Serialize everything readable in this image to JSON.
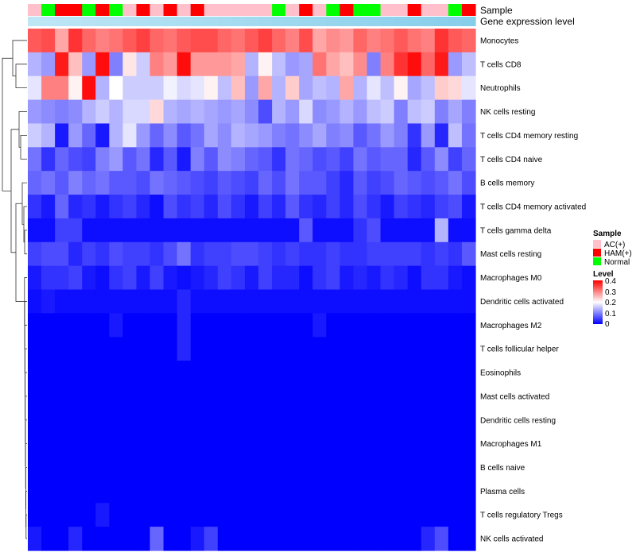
{
  "chart_data": {
    "type": "heatmap",
    "annotation_tracks": [
      "Sample",
      "Gene expression level"
    ],
    "rows": [
      "Monocytes",
      "T cells CD8",
      "Neutrophils",
      "NK cells resting",
      "T cells CD4 memory resting",
      "T cells CD4 naive",
      "B cells memory",
      "T cells CD4 memory activated",
      "T cells gamma delta",
      "Mast cells resting",
      "Macrophages M0",
      "Dendritic cells activated",
      "Macrophages M2",
      "T cells follicular helper",
      "Eosinophils",
      "Mast cells activated",
      "Dendritic cells resting",
      "Macrophages M1",
      "B cells naive",
      "Plasma cells",
      "T cells regulatory  Tregs",
      "NK cells activated"
    ],
    "sample_groups": [
      "A",
      "N",
      "H",
      "H",
      "N",
      "H",
      "N",
      "A",
      "H",
      "A",
      "H",
      "A",
      "H",
      "A",
      "A",
      "A",
      "A",
      "A",
      "N",
      "A",
      "H",
      "A",
      "N",
      "H",
      "N",
      "N",
      "A",
      "A",
      "H",
      "A",
      "A",
      "N",
      "H"
    ],
    "legend_sample": {
      "title": "Sample",
      "items": [
        {
          "label": "AC(+)",
          "color": "#FFC0CB"
        },
        {
          "label": "HAM(+)",
          "color": "#FF0000"
        },
        {
          "label": "Normal",
          "color": "#00FF00"
        }
      ]
    },
    "legend_level": {
      "title": "Level",
      "ticks": [
        "0.4",
        "0.3",
        "0.2",
        "0.1",
        "0"
      ],
      "range": [
        0,
        0.4
      ],
      "color_low": "#0000FF",
      "color_mid": "#FFFFFF",
      "color_high": "#FF0000"
    },
    "expression_track_color": "#87CEEB",
    "expression_track_light": "#BEE6F5",
    "values": [
      [
        0.33,
        0.34,
        0.27,
        0.36,
        0.32,
        0.3,
        0.31,
        0.33,
        0.35,
        0.32,
        0.31,
        0.33,
        0.34,
        0.34,
        0.32,
        0.31,
        0.33,
        0.35,
        0.32,
        0.3,
        0.34,
        0.27,
        0.29,
        0.28,
        0.32,
        0.3,
        0.31,
        0.33,
        0.31,
        0.3,
        0.36,
        0.33,
        0.32
      ],
      [
        0.14,
        0.12,
        0.38,
        0.25,
        0.12,
        0.39,
        0.1,
        0.22,
        0.16,
        0.3,
        0.28,
        0.39,
        0.28,
        0.28,
        0.28,
        0.27,
        0.14,
        0.21,
        0.15,
        0.12,
        0.13,
        0.31,
        0.27,
        0.25,
        0.29,
        0.1,
        0.3,
        0.36,
        0.39,
        0.32,
        0.38,
        0.12,
        0.15
      ],
      [
        0.18,
        0.3,
        0.3,
        0.21,
        0.39,
        0.14,
        0.2,
        0.16,
        0.16,
        0.16,
        0.19,
        0.17,
        0.18,
        0.21,
        0.15,
        0.25,
        0.12,
        0.27,
        0.14,
        0.24,
        0.13,
        0.15,
        0.14,
        0.27,
        0.14,
        0.18,
        0.15,
        0.21,
        0.13,
        0.15,
        0.24,
        0.23,
        0.18
      ],
      [
        0.12,
        0.11,
        0.1,
        0.11,
        0.14,
        0.16,
        0.14,
        0.17,
        0.17,
        0.23,
        0.14,
        0.13,
        0.14,
        0.13,
        0.12,
        0.13,
        0.11,
        0.06,
        0.14,
        0.12,
        0.17,
        0.11,
        0.12,
        0.14,
        0.12,
        0.15,
        0.16,
        0.1,
        0.15,
        0.16,
        0.1,
        0.13,
        0.1
      ],
      [
        0.16,
        0.14,
        0.02,
        0.12,
        0.08,
        0.02,
        0.14,
        0.18,
        0.12,
        0.08,
        0.11,
        0.07,
        0.09,
        0.13,
        0.11,
        0.14,
        0.13,
        0.12,
        0.1,
        0.09,
        0.11,
        0.13,
        0.1,
        0.11,
        0.07,
        0.09,
        0.12,
        0.1,
        0.04,
        0.12,
        0.03,
        0.15,
        0.09
      ],
      [
        0.09,
        0.04,
        0.08,
        0.06,
        0.05,
        0.1,
        0.12,
        0.07,
        0.09,
        0.03,
        0.07,
        0.02,
        0.1,
        0.07,
        0.11,
        0.1,
        0.08,
        0.07,
        0.04,
        0.09,
        0.08,
        0.06,
        0.07,
        0.05,
        0.09,
        0.07,
        0.08,
        0.08,
        0.03,
        0.07,
        0.11,
        0.05,
        0.08
      ],
      [
        0.08,
        0.09,
        0.07,
        0.1,
        0.08,
        0.09,
        0.07,
        0.07,
        0.06,
        0.09,
        0.08,
        0.07,
        0.06,
        0.05,
        0.07,
        0.06,
        0.05,
        0.08,
        0.06,
        0.09,
        0.07,
        0.07,
        0.05,
        0.03,
        0.07,
        0.05,
        0.06,
        0.08,
        0.07,
        0.06,
        0.07,
        0.09,
        0.06
      ],
      [
        0.04,
        0.02,
        0.08,
        0.03,
        0.04,
        0.02,
        0.04,
        0.05,
        0.03,
        0.01,
        0.06,
        0.04,
        0.05,
        0.03,
        0.06,
        0.04,
        0.02,
        0.05,
        0.03,
        0.07,
        0.04,
        0.03,
        0.05,
        0.03,
        0.06,
        0.04,
        0.02,
        0.05,
        0.04,
        0.03,
        0.05,
        0.06,
        0.02
      ],
      [
        0.01,
        0.01,
        0.05,
        0.05,
        0.01,
        0.01,
        0.01,
        0.01,
        0.01,
        0.01,
        0.01,
        0.01,
        0.01,
        0.01,
        0.01,
        0.01,
        0.01,
        0.01,
        0.01,
        0.01,
        0.07,
        0.01,
        0.01,
        0.01,
        0.04,
        0.06,
        0.01,
        0.01,
        0.01,
        0.01,
        0.14,
        0.01,
        0.01
      ],
      [
        0.05,
        0.06,
        0.06,
        0.03,
        0.05,
        0.04,
        0.06,
        0.05,
        0.05,
        0.04,
        0.06,
        0.09,
        0.04,
        0.05,
        0.05,
        0.06,
        0.06,
        0.05,
        0.04,
        0.05,
        0.04,
        0.04,
        0.05,
        0.04,
        0.04,
        0.05,
        0.05,
        0.05,
        0.05,
        0.04,
        0.05,
        0.04,
        0.07
      ],
      [
        0.02,
        0.04,
        0.04,
        0.05,
        0.02,
        0.01,
        0.04,
        0.05,
        0.02,
        0.05,
        0.02,
        0.01,
        0.02,
        0.03,
        0.05,
        0.04,
        0.02,
        0.05,
        0.03,
        0.03,
        0.01,
        0.04,
        0.05,
        0.02,
        0.03,
        0.02,
        0.04,
        0.03,
        0.01,
        0.04,
        0.04,
        0.02,
        0.01
      ],
      [
        0.01,
        0.02,
        0.01,
        0.01,
        0.01,
        0.01,
        0.01,
        0.01,
        0.01,
        0.01,
        0.01,
        0.03,
        0.01,
        0.01,
        0.01,
        0.01,
        0.01,
        0.01,
        0.01,
        0.01,
        0.01,
        0.01,
        0.01,
        0.01,
        0.01,
        0.01,
        0.01,
        0.01,
        0.01,
        0.01,
        0.01,
        0.01,
        0.01
      ],
      [
        0.0,
        0.0,
        0.0,
        0.0,
        0.0,
        0.0,
        0.02,
        0.0,
        0.0,
        0.0,
        0.0,
        0.03,
        0.0,
        0.0,
        0.0,
        0.0,
        0.0,
        0.0,
        0.0,
        0.0,
        0.0,
        0.02,
        0.0,
        0.0,
        0.0,
        0.0,
        0.0,
        0.0,
        0.0,
        0.0,
        0.0,
        0.0,
        0.0
      ],
      [
        0.0,
        0.0,
        0.0,
        0.0,
        0.0,
        0.0,
        0.0,
        0.0,
        0.0,
        0.0,
        0.0,
        0.03,
        0.0,
        0.0,
        0.0,
        0.0,
        0.0,
        0.0,
        0.0,
        0.0,
        0.0,
        0.0,
        0.0,
        0.0,
        0.0,
        0.0,
        0.0,
        0.0,
        0.0,
        0.0,
        0.0,
        0.0,
        0.0
      ],
      [
        0.0,
        0.0,
        0.0,
        0.0,
        0.0,
        0.0,
        0.0,
        0.0,
        0.0,
        0.0,
        0.0,
        0.0,
        0.0,
        0.0,
        0.0,
        0.0,
        0.0,
        0.0,
        0.0,
        0.0,
        0.0,
        0.0,
        0.0,
        0.0,
        0.0,
        0.0,
        0.0,
        0.0,
        0.0,
        0.0,
        0.0,
        0.0,
        0.0
      ],
      [
        0.0,
        0.0,
        0.0,
        0.0,
        0.0,
        0.0,
        0.0,
        0.0,
        0.0,
        0.0,
        0.0,
        0.0,
        0.0,
        0.0,
        0.0,
        0.0,
        0.0,
        0.0,
        0.0,
        0.0,
        0.0,
        0.0,
        0.0,
        0.0,
        0.0,
        0.0,
        0.0,
        0.0,
        0.0,
        0.0,
        0.0,
        0.0,
        0.0
      ],
      [
        0.0,
        0.0,
        0.0,
        0.0,
        0.0,
        0.0,
        0.0,
        0.0,
        0.0,
        0.0,
        0.0,
        0.0,
        0.0,
        0.0,
        0.0,
        0.0,
        0.0,
        0.0,
        0.0,
        0.0,
        0.0,
        0.0,
        0.0,
        0.0,
        0.0,
        0.0,
        0.0,
        0.0,
        0.0,
        0.0,
        0.0,
        0.0,
        0.0
      ],
      [
        0.0,
        0.0,
        0.0,
        0.0,
        0.0,
        0.0,
        0.0,
        0.0,
        0.0,
        0.0,
        0.0,
        0.0,
        0.0,
        0.0,
        0.0,
        0.0,
        0.0,
        0.0,
        0.0,
        0.0,
        0.0,
        0.0,
        0.0,
        0.0,
        0.0,
        0.0,
        0.0,
        0.0,
        0.0,
        0.0,
        0.0,
        0.0,
        0.0
      ],
      [
        0.0,
        0.0,
        0.0,
        0.0,
        0.0,
        0.0,
        0.0,
        0.0,
        0.0,
        0.0,
        0.0,
        0.0,
        0.0,
        0.0,
        0.0,
        0.0,
        0.0,
        0.0,
        0.0,
        0.0,
        0.0,
        0.0,
        0.0,
        0.0,
        0.0,
        0.0,
        0.0,
        0.0,
        0.0,
        0.0,
        0.0,
        0.0,
        0.0
      ],
      [
        0.0,
        0.0,
        0.0,
        0.0,
        0.0,
        0.0,
        0.0,
        0.0,
        0.0,
        0.0,
        0.0,
        0.0,
        0.0,
        0.0,
        0.0,
        0.0,
        0.0,
        0.0,
        0.0,
        0.0,
        0.0,
        0.0,
        0.0,
        0.0,
        0.0,
        0.0,
        0.0,
        0.0,
        0.0,
        0.0,
        0.0,
        0.0,
        0.0
      ],
      [
        0.0,
        0.0,
        0.0,
        0.0,
        0.0,
        0.02,
        0.0,
        0.0,
        0.0,
        0.0,
        0.0,
        0.0,
        0.0,
        0.0,
        0.0,
        0.0,
        0.0,
        0.0,
        0.0,
        0.0,
        0.0,
        0.0,
        0.0,
        0.0,
        0.0,
        0.0,
        0.0,
        0.0,
        0.0,
        0.0,
        0.0,
        0.0,
        0.0
      ],
      [
        0.02,
        0.0,
        0.0,
        0.03,
        0.0,
        0.0,
        0.0,
        0.0,
        0.0,
        0.08,
        0.0,
        0.0,
        0.02,
        0.05,
        0.0,
        0.0,
        0.0,
        0.0,
        0.0,
        0.0,
        0.0,
        0.0,
        0.0,
        0.0,
        0.0,
        0.0,
        0.0,
        0.0,
        0.0,
        0.03,
        0.06,
        0.0,
        0.0
      ]
    ]
  }
}
